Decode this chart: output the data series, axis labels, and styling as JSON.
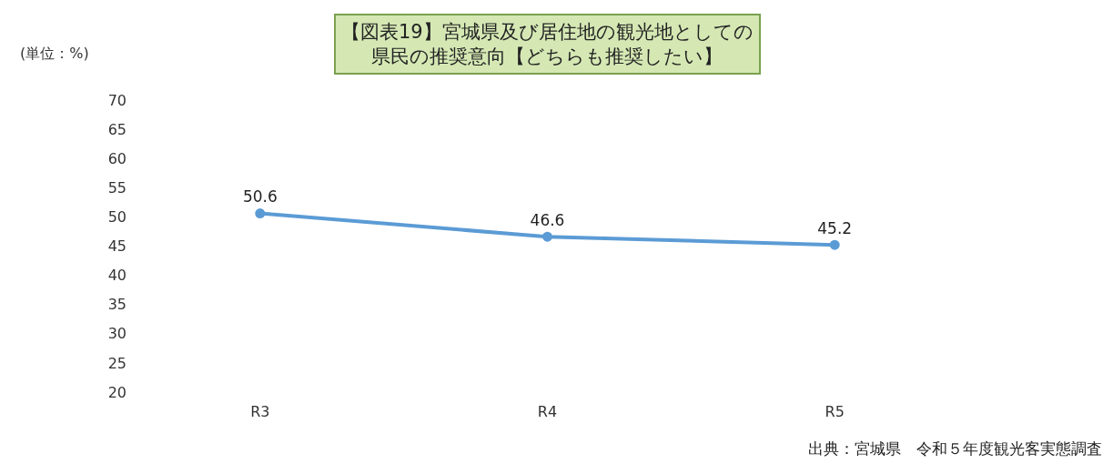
{
  "chart_data": {
    "type": "line",
    "title": "【図表19】宮城県及び居住地の観光地としての県民の推奨意向【どちらも推奨したい】",
    "ylabel": "(単位：%)",
    "categories": [
      "R3",
      "R4",
      "R5"
    ],
    "series": [
      {
        "color": "#5b9bd5",
        "values": [
          50.6,
          46.6,
          45.2
        ]
      }
    ],
    "ylim": [
      20,
      70
    ],
    "yticks": [
      20,
      25,
      30,
      35,
      40,
      45,
      50,
      55,
      60,
      65,
      70
    ],
    "data_labels": true,
    "marker": "circle",
    "line_style": "solid",
    "legend": false,
    "annotations": [
      "出典：宮城県　令和５年度観光客実態調査"
    ]
  }
}
